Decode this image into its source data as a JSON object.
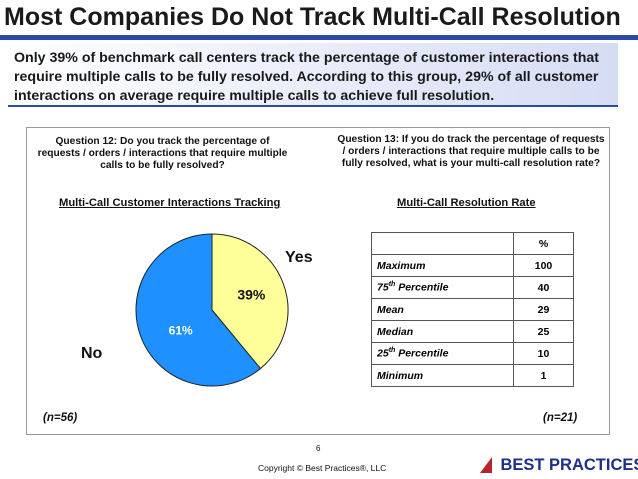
{
  "header": {
    "title": "Most Companies Do Not Track Multi-Call Resolution",
    "banner_text": "Only 39% of benchmark call centers track the percentage of customer interactions that require multiple calls to be fully resolved.  According to this group, 29% of all customer interactions on average require multiple calls to achieve full resolution."
  },
  "left": {
    "question": "Question 12: Do you track the percentage of requests / orders / interactions that require multiple calls to be fully resolved?",
    "subtitle": "Multi-Call Customer Interactions Tracking",
    "sample": "(n=56)"
  },
  "right": {
    "question": "Question 13: If you do track the percentage of requests / orders / interactions that require multiple calls to be fully resolved, what is your multi-call resolution rate?",
    "subtitle": "Multi-Call Resolution Rate",
    "sample": "(n=21)"
  },
  "chart_data": [
    {
      "type": "pie",
      "title": "Multi-Call Customer Interactions Tracking",
      "categories": [
        "Yes",
        "No"
      ],
      "values": [
        39,
        61
      ],
      "value_labels": [
        "39%",
        "61%"
      ],
      "colors": [
        "#ffff99",
        "#1e90ff"
      ]
    },
    {
      "type": "table",
      "title": "Multi-Call Resolution Rate",
      "column_header": "%",
      "rows": [
        {
          "label": "Maximum",
          "sup": "",
          "rest": "",
          "value": "100"
        },
        {
          "label": "75",
          "sup": "th",
          "rest": " Percentile",
          "value": "40"
        },
        {
          "label": "Mean",
          "sup": "",
          "rest": "",
          "value": "29"
        },
        {
          "label": "Median",
          "sup": "",
          "rest": "",
          "value": "25"
        },
        {
          "label": "25",
          "sup": "th",
          "rest": " Percentile",
          "value": "10"
        },
        {
          "label": "Minimum",
          "sup": "",
          "rest": "",
          "value": "1"
        }
      ]
    }
  ],
  "footer": {
    "page_number": "6",
    "copyright": "Copyright ©  Best Practices®, LLC",
    "brand": "BEST PRACTICES"
  }
}
